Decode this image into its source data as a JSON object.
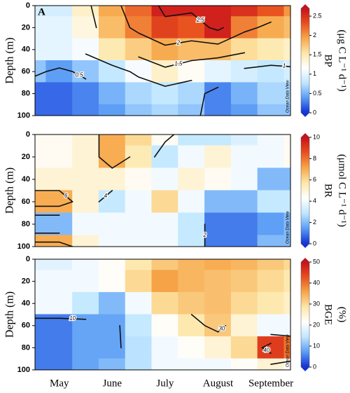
{
  "chart_data": [
    {
      "type": "contour",
      "panel_label": "A",
      "y_label": "Depth (m)",
      "colorbar_label": [
        "BP",
        "(μg C L⁻¹ d⁻¹)"
      ],
      "watermark": "Ocean Data View",
      "x": [
        -0.5,
        0,
        0.5,
        1,
        1.5,
        2,
        2.5,
        3,
        3.5,
        4,
        4.5
      ],
      "xlim": [
        -0.46,
        4.37
      ],
      "y": [
        0,
        20,
        40,
        60,
        80,
        100
      ],
      "ylim": [
        0,
        100
      ],
      "yticks": [
        0,
        20,
        40,
        60,
        80,
        100
      ],
      "z": [
        [
          0.9,
          0.9,
          1.4,
          1.9,
          2.2,
          2.6,
          2.6,
          2.6,
          2.5,
          2.3,
          2.0
        ],
        [
          1.0,
          1.0,
          1.3,
          1.8,
          2.1,
          2.4,
          2.3,
          2.6,
          2.1,
          1.9,
          1.8
        ],
        [
          1.0,
          1.0,
          1.1,
          1.5,
          1.7,
          1.9,
          1.8,
          1.8,
          1.6,
          1.5,
          1.4
        ],
        [
          0.6,
          0.4,
          0.6,
          0.8,
          1.1,
          1.4,
          1.2,
          1.0,
          0.9,
          0.8,
          0.9
        ],
        [
          0.2,
          0.2,
          0.3,
          0.5,
          0.7,
          0.8,
          0.7,
          0.3,
          0.5,
          0.7,
          0.7
        ],
        [
          0.2,
          0.2,
          0.3,
          0.4,
          0.6,
          0.7,
          0.6,
          0.3,
          0.4,
          0.6,
          0.6
        ]
      ],
      "zlim": [
        0,
        2.7
      ],
      "zticks": [
        0,
        0.5,
        1,
        1.5,
        2,
        2.5
      ],
      "contour_levels": [
        0.5,
        1,
        1.5,
        2,
        2.5
      ],
      "colormap": [
        "#1030d8",
        "#5a9cf5",
        "#bfe6ff",
        "#ffffff",
        "#fde7a8",
        "#f7a64a",
        "#e8501e",
        "#c8101c"
      ]
    },
    {
      "type": "contour",
      "y_label": "Depth (m)",
      "colorbar_label": [
        "BR",
        "(μmol C L⁻¹ d⁻¹)"
      ],
      "watermark": "Ocean Data View",
      "x": [
        -0.5,
        0,
        0.5,
        1,
        1.5,
        2,
        2.5,
        3,
        3.5,
        4,
        4.5
      ],
      "xlim": [
        -0.46,
        4.37
      ],
      "y": [
        0,
        20,
        40,
        60,
        80,
        100
      ],
      "ylim": [
        0,
        100
      ],
      "yticks": [
        0,
        20,
        40,
        60,
        80,
        100
      ],
      "z": [
        [
          4.5,
          4.5,
          5,
          7,
          6,
          4.5,
          3,
          3,
          3.5,
          4,
          4.5
        ],
        [
          4.5,
          4.5,
          5,
          7,
          5.5,
          3,
          4,
          5,
          4,
          4,
          4.5
        ],
        [
          5,
          5,
          5,
          5,
          4.5,
          4,
          5,
          4.5,
          4,
          2,
          2
        ],
        [
          7,
          7,
          5,
          3,
          4,
          6,
          4,
          2,
          2,
          3,
          3
        ],
        [
          2,
          2,
          4,
          4,
          4,
          4,
          3,
          1,
          1,
          1.5,
          2
        ],
        [
          7,
          7,
          5,
          4,
          4,
          4,
          3,
          1,
          1,
          2,
          2
        ]
      ],
      "zlim": [
        0,
        10
      ],
      "zticks": [
        0,
        2,
        4,
        6,
        8,
        10
      ],
      "contour_levels": [
        2,
        4,
        6,
        8
      ],
      "colormap": [
        "#1030d8",
        "#5a9cf5",
        "#bfe6ff",
        "#ffffff",
        "#fde7a8",
        "#f7a64a",
        "#e8501e",
        "#c8101c"
      ]
    },
    {
      "type": "contour",
      "y_label": "Depth (m)",
      "colorbar_label": [
        "BGE",
        "(%)"
      ],
      "watermark": "Ocean Data View",
      "categories": [
        "May",
        "June",
        "July",
        "August",
        "September"
      ],
      "x": [
        -0.5,
        0,
        0.5,
        1,
        1.5,
        2,
        2.5,
        3,
        3.5,
        4,
        4.5
      ],
      "xlim": [
        -0.46,
        4.37
      ],
      "y": [
        0,
        20,
        40,
        60,
        80,
        100
      ],
      "ylim": [
        0,
        100
      ],
      "yticks": [
        0,
        20,
        40,
        60,
        80,
        100
      ],
      "z": [
        [
          18,
          18,
          20,
          22,
          28,
          32,
          34,
          35,
          34,
          32,
          30
        ],
        [
          20,
          20,
          20,
          22,
          30,
          36,
          34,
          33,
          32,
          30,
          28
        ],
        [
          20,
          20,
          15,
          10,
          20,
          30,
          32,
          33,
          30,
          28,
          26
        ],
        [
          5,
          5,
          8,
          8,
          15,
          22,
          28,
          32,
          25,
          20,
          20
        ],
        [
          5,
          5,
          8,
          8,
          14,
          20,
          22,
          25,
          30,
          45,
          40
        ],
        [
          5,
          5,
          8,
          10,
          14,
          20,
          20,
          20,
          22,
          25,
          22
        ]
      ],
      "zlim": [
        0,
        50
      ],
      "zticks": [
        0,
        10,
        20,
        30,
        40,
        50
      ],
      "contour_levels": [
        10,
        20,
        30,
        40
      ],
      "colormap": [
        "#1030d8",
        "#5a9cf5",
        "#bfe6ff",
        "#ffffff",
        "#fde7a8",
        "#f7a64a",
        "#e8501e",
        "#c8101c"
      ]
    }
  ]
}
